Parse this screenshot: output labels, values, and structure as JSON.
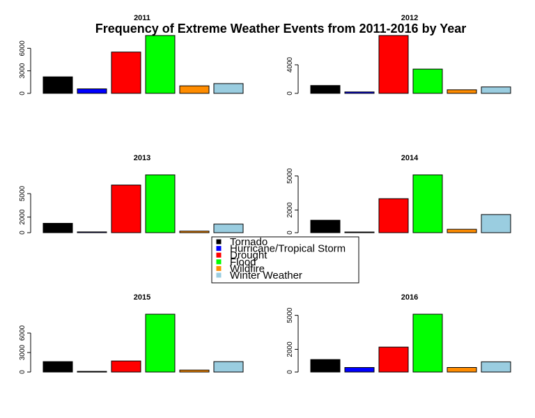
{
  "title": "Frequency of Extreme Weather Events from 2011-2016 by Year",
  "legend": {
    "placement": "center",
    "entries": [
      {
        "label": "Tornado",
        "color": "#000000"
      },
      {
        "label": "Hurricane/Tropical Storm",
        "color": "#0000FF"
      },
      {
        "label": "Drought",
        "color": "#FF0000"
      },
      {
        "label": "Flood",
        "color": "#00FF00"
      },
      {
        "label": "Wildfire",
        "color": "#FF8C00"
      },
      {
        "label": "Winter Weather",
        "color": "#9ACDE0"
      }
    ]
  },
  "chart_data": [
    {
      "type": "bar",
      "title": "2011",
      "categories": [
        "Tornado",
        "Hurricane/Tropical Storm",
        "Drought",
        "Flood",
        "Wildfire",
        "Winter Weather"
      ],
      "values": [
        2200,
        600,
        5500,
        7700,
        1000,
        1300
      ],
      "ylim": [
        0,
        7700
      ],
      "yticks": [
        0,
        3000,
        6000
      ],
      "grid": false
    },
    {
      "type": "bar",
      "title": "2012",
      "categories": [
        "Tornado",
        "Hurricane/Tropical Storm",
        "Drought",
        "Flood",
        "Wildfire",
        "Winter Weather"
      ],
      "values": [
        1100,
        200,
        8100,
        3400,
        500,
        900
      ],
      "ylim": [
        0,
        8100
      ],
      "yticks": [
        0,
        4000
      ],
      "grid": false
    },
    {
      "type": "bar",
      "title": "2013",
      "categories": [
        "Tornado",
        "Hurricane/Tropical Storm",
        "Drought",
        "Flood",
        "Wildfire",
        "Winter Weather"
      ],
      "values": [
        1200,
        100,
        6100,
        7400,
        200,
        1100
      ],
      "ylim": [
        0,
        7400
      ],
      "yticks": [
        0,
        2000,
        5000
      ],
      "grid": false
    },
    {
      "type": "bar",
      "title": "2014",
      "categories": [
        "Tornado",
        "Hurricane/Tropical Storm",
        "Drought",
        "Flood",
        "Wildfire",
        "Winter Weather"
      ],
      "values": [
        1100,
        60,
        3000,
        5100,
        300,
        1600
      ],
      "ylim": [
        0,
        5100
      ],
      "yticks": [
        0,
        2000,
        5000
      ],
      "grid": false
    },
    {
      "type": "bar",
      "title": "2015",
      "categories": [
        "Tornado",
        "Hurricane/Tropical Storm",
        "Drought",
        "Flood",
        "Wildfire",
        "Winter Weather"
      ],
      "values": [
        1600,
        100,
        1700,
        8900,
        300,
        1600
      ],
      "ylim": [
        0,
        8900
      ],
      "yticks": [
        0,
        3000,
        6000
      ],
      "grid": false
    },
    {
      "type": "bar",
      "title": "2016",
      "categories": [
        "Tornado",
        "Hurricane/Tropical Storm",
        "Drought",
        "Flood",
        "Wildfire",
        "Winter Weather"
      ],
      "values": [
        1100,
        400,
        2200,
        5100,
        400,
        900
      ],
      "ylim": [
        0,
        5100
      ],
      "yticks": [
        0,
        2000,
        5000
      ],
      "grid": false
    }
  ]
}
